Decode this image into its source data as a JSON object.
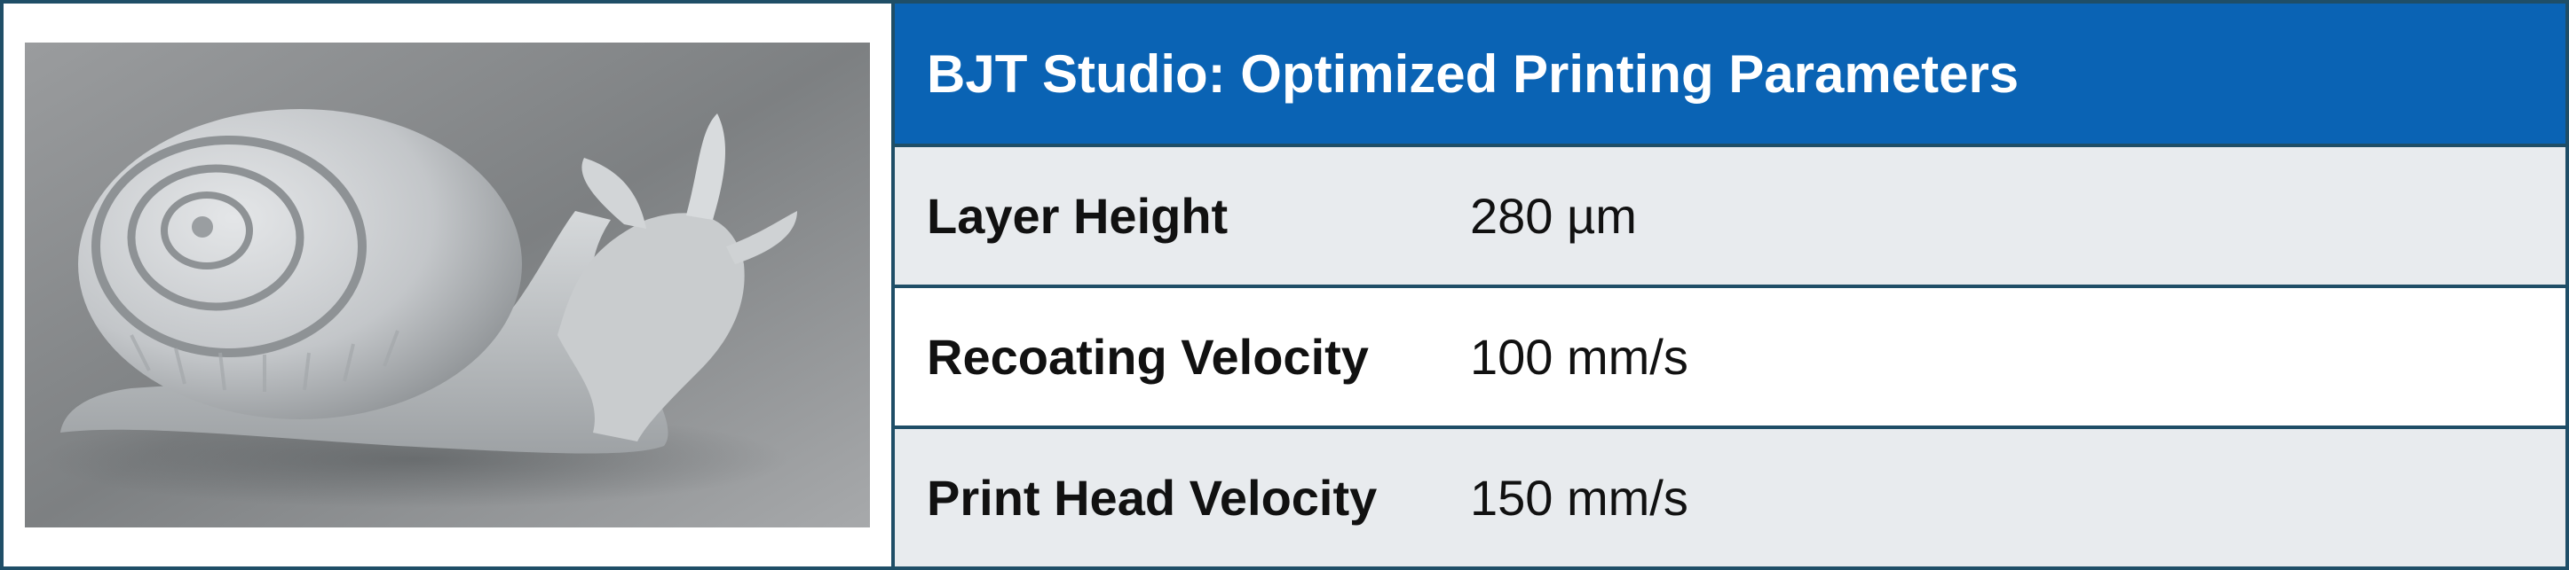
{
  "table": {
    "title": "BJT Studio: Optimized Printing Parameters",
    "rows": [
      {
        "label": "Layer Height",
        "value": "280 µm"
      },
      {
        "label": "Recoating Velocity",
        "value": "100 mm/s"
      },
      {
        "label": "Print Head Velocity",
        "value": "150 mm/s"
      }
    ]
  },
  "colors": {
    "header_bg": "#0a63b4",
    "border": "#1f4e67",
    "row_shade": "#e8ebee",
    "row_plain": "#ffffff"
  }
}
